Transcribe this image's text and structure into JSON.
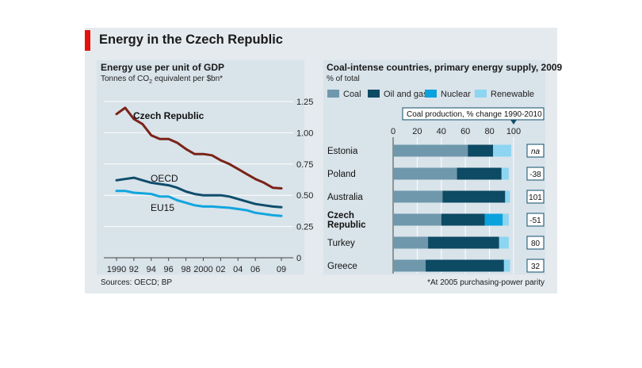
{
  "header": {
    "title": "Energy in the Czech Republic"
  },
  "colors": {
    "brand_red": "#e3120b",
    "czech": "#7a2418",
    "oecd": "#0f4d6b",
    "eu15": "#12a5de",
    "coal": "#6f98ac",
    "oil_gas": "#0d4a63",
    "nuclear": "#0aa2dd",
    "renewable": "#8dd5f0"
  },
  "chart_data": [
    {
      "type": "line",
      "title": "Energy use per unit of GDP",
      "subtitle_parts": [
        "Tonnes of CO",
        "2",
        " equivalent per $bn*"
      ],
      "x": [
        1990,
        1991,
        1992,
        1993,
        1994,
        1995,
        1996,
        1997,
        1998,
        1999,
        2000,
        2001,
        2002,
        2003,
        2004,
        2005,
        2006,
        2007,
        2008,
        2009
      ],
      "x_tick_labels": [
        {
          "x": 1990,
          "label": "1990"
        },
        {
          "x": 1992,
          "label": "92"
        },
        {
          "x": 1994,
          "label": "94"
        },
        {
          "x": 1996,
          "label": "96"
        },
        {
          "x": 1998,
          "label": "98"
        },
        {
          "x": 2000,
          "label": "2000"
        },
        {
          "x": 2002,
          "label": "02"
        },
        {
          "x": 2004,
          "label": "04"
        },
        {
          "x": 2006,
          "label": "06"
        },
        {
          "x": 2009,
          "label": "09"
        }
      ],
      "y_ticks": [
        {
          "value": 0,
          "label": "0"
        },
        {
          "value": 0.25,
          "label": "0.25"
        },
        {
          "value": 0.5,
          "label": "0.50"
        },
        {
          "value": 0.75,
          "label": "0.75"
        },
        {
          "value": 1.0,
          "label": "1.00"
        },
        {
          "value": 1.25,
          "label": "1.25"
        }
      ],
      "ylim": [
        0,
        1.25
      ],
      "series": [
        {
          "name": "Czech Republic",
          "color": "#7a2418",
          "bold": true,
          "values": [
            1.15,
            1.2,
            1.11,
            1.07,
            0.98,
            0.95,
            0.95,
            0.92,
            0.87,
            0.83,
            0.83,
            0.82,
            0.78,
            0.75,
            0.71,
            0.67,
            0.63,
            0.6,
            0.56,
            0.555
          ]
        },
        {
          "name": "OECD",
          "color": "#0f4d6b",
          "bold": false,
          "values": [
            0.62,
            0.63,
            0.64,
            0.62,
            0.6,
            0.59,
            0.58,
            0.56,
            0.53,
            0.51,
            0.5,
            0.5,
            0.5,
            0.49,
            0.47,
            0.45,
            0.43,
            0.42,
            0.41,
            0.405
          ]
        },
        {
          "name": "EU15",
          "color": "#12a5de",
          "bold": false,
          "values": [
            0.535,
            0.535,
            0.52,
            0.515,
            0.51,
            0.49,
            0.49,
            0.46,
            0.44,
            0.42,
            0.41,
            0.41,
            0.405,
            0.4,
            0.39,
            0.38,
            0.36,
            0.35,
            0.34,
            0.335
          ]
        }
      ]
    },
    {
      "type": "bar",
      "orientation": "horizontal",
      "stacked": true,
      "title": "Coal-intense countries, primary energy supply, 2009",
      "subtitle": "% of total",
      "xlim": [
        0,
        100
      ],
      "x_ticks": [
        0,
        20,
        40,
        60,
        80,
        100
      ],
      "categories": [
        "Estonia",
        "Poland",
        "Australia",
        "Czech Republic",
        "Turkey",
        "Greece"
      ],
      "category_labels": [
        [
          "Estonia"
        ],
        [
          "Poland"
        ],
        [
          "Australia"
        ],
        [
          "Czech",
          "Republic"
        ],
        [
          "Turkey"
        ],
        [
          "Greece"
        ]
      ],
      "category_bold": [
        false,
        false,
        false,
        true,
        false,
        false
      ],
      "series": [
        {
          "name": "Coal",
          "color": "#6f98ac",
          "values": [
            62,
            53,
            41,
            40,
            29,
            27
          ]
        },
        {
          "name": "Oil and gas",
          "color": "#0d4a63",
          "values": [
            21,
            37,
            52,
            36,
            59,
            65
          ]
        },
        {
          "name": "Nuclear",
          "color": "#0aa2dd",
          "values": [
            0,
            0,
            0,
            15,
            0,
            0
          ]
        },
        {
          "name": "Renewable",
          "color": "#8dd5f0",
          "values": [
            15,
            6,
            4,
            5,
            8,
            5
          ]
        }
      ],
      "side_column": {
        "title": "Coal production, % change 1990-2010",
        "values": [
          "na",
          "-38",
          "101",
          "-51",
          "80",
          "32"
        ]
      }
    }
  ],
  "footer": {
    "sources": "Sources: OECD; BP",
    "footnote": "*At 2005 purchasing-power parity"
  }
}
